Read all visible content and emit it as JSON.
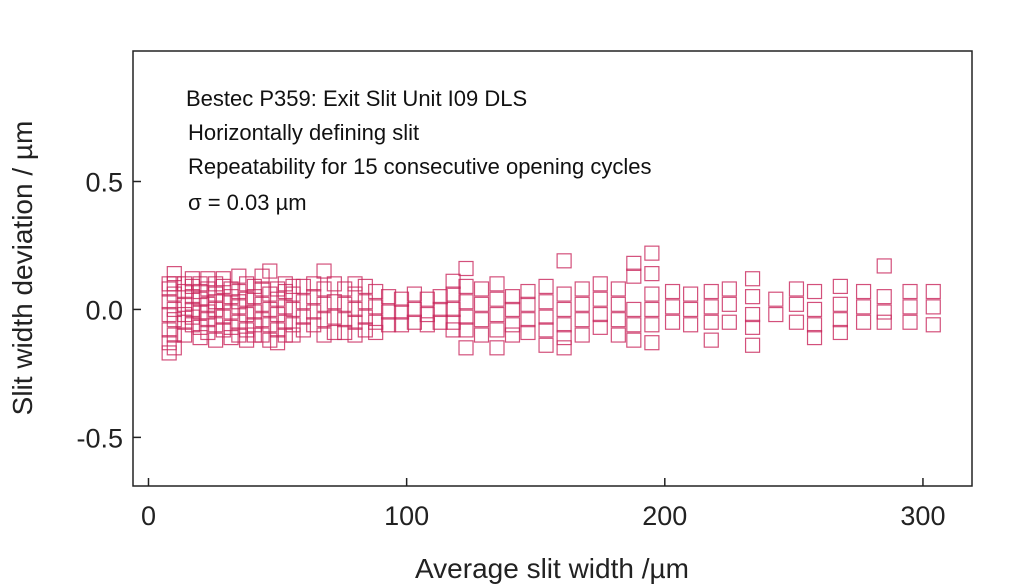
{
  "chart_data": {
    "type": "scatter",
    "title": "",
    "annotations": [
      "Bestec P359: Exit Slit Unit I09 DLS",
      "Horizontally defining slit",
      "Repeatability for 15 consecutive opening cycles",
      "σ = 0.03 µm"
    ],
    "xlabel": "Average slit width /µm",
    "ylabel": "Slit width deviation / µm",
    "xlim": [
      -6,
      319
    ],
    "ylim": [
      -0.69,
      1.01
    ],
    "xticks": [
      0,
      100,
      200,
      300
    ],
    "xtick_labels": [
      "0",
      "100",
      "200",
      "300"
    ],
    "yticks": [
      0.5,
      0.0,
      -0.5
    ],
    "ytick_labels": [
      "0.5",
      "0.0",
      "-0.5"
    ],
    "grid": false,
    "marker": "open-square",
    "color": "#c8245a",
    "columns": [
      {
        "x": 8,
        "y": [
          0.08,
          0.03,
          -0.02,
          -0.08,
          -0.13,
          -0.17,
          0.1
        ]
      },
      {
        "x": 10,
        "y": [
          0.14,
          0.06,
          -0.04,
          -0.1,
          -0.15,
          0.0,
          0.1
        ]
      },
      {
        "x": 14,
        "y": [
          0.07,
          0.02,
          -0.05,
          -0.1,
          0.1,
          -0.02
        ]
      },
      {
        "x": 17,
        "y": [
          0.05,
          0.0,
          -0.06,
          0.09,
          -0.03,
          0.12
        ]
      },
      {
        "x": 20,
        "y": [
          0.1,
          0.04,
          -0.01,
          -0.07,
          -0.11,
          0.07
        ]
      },
      {
        "x": 23,
        "y": [
          0.08,
          0.02,
          -0.04,
          -0.09,
          0.12,
          -0.01
        ]
      },
      {
        "x": 26,
        "y": [
          0.06,
          0.0,
          -0.06,
          -0.12,
          0.1,
          0.03
        ]
      },
      {
        "x": 29,
        "y": [
          0.09,
          0.03,
          -0.03,
          -0.08,
          0.12
        ]
      },
      {
        "x": 32,
        "y": [
          0.05,
          -0.01,
          -0.07,
          -0.11,
          0.08
        ]
      },
      {
        "x": 35,
        "y": [
          0.07,
          0.01,
          -0.05,
          -0.1,
          0.13,
          0.03
        ]
      },
      {
        "x": 38,
        "y": [
          0.1,
          0.04,
          -0.02,
          -0.08,
          -0.12
        ]
      },
      {
        "x": 41,
        "y": [
          0.05,
          -0.01,
          -0.06,
          0.09,
          -0.1
        ]
      },
      {
        "x": 44,
        "y": [
          0.08,
          0.02,
          -0.04,
          -0.1,
          0.13
        ]
      },
      {
        "x": 47,
        "y": [
          0.15,
          0.06,
          0.0,
          -0.06,
          -0.12
        ]
      },
      {
        "x": 50,
        "y": [
          0.04,
          -0.02,
          -0.08,
          -0.13,
          0.08
        ]
      },
      {
        "x": 53,
        "y": [
          0.07,
          0.01,
          -0.05,
          -0.1,
          0.1
        ]
      },
      {
        "x": 56,
        "y": [
          0.06,
          0.0,
          -0.06,
          -0.1,
          0.09
        ]
      },
      {
        "x": 60,
        "y": [
          0.09,
          0.03,
          -0.03,
          -0.08
        ]
      },
      {
        "x": 64,
        "y": [
          0.05,
          -0.01,
          -0.06,
          0.1
        ]
      },
      {
        "x": 68,
        "y": [
          0.15,
          0.08,
          0.02,
          -0.04,
          -0.1
        ]
      },
      {
        "x": 72,
        "y": [
          0.1,
          0.03,
          -0.03,
          -0.09
        ]
      },
      {
        "x": 76,
        "y": [
          0.08,
          0.02,
          -0.04,
          -0.09
        ]
      },
      {
        "x": 80,
        "y": [
          0.06,
          0.0,
          -0.05,
          -0.1,
          0.1
        ]
      },
      {
        "x": 84,
        "y": [
          0.09,
          0.03,
          -0.03,
          -0.08
        ]
      },
      {
        "x": 88,
        "y": [
          0.07,
          0.01,
          -0.05,
          -0.09
        ]
      },
      {
        "x": 93,
        "y": [
          0.05,
          -0.01,
          -0.06
        ]
      },
      {
        "x": 98,
        "y": [
          0.04,
          -0.01,
          -0.06
        ]
      },
      {
        "x": 103,
        "y": [
          0.06,
          0.0,
          -0.05
        ]
      },
      {
        "x": 108,
        "y": [
          0.04,
          -0.02,
          -0.06
        ]
      },
      {
        "x": 113,
        "y": [
          0.05,
          0.0,
          -0.05
        ]
      },
      {
        "x": 118,
        "y": [
          0.11,
          0.06,
          0.0,
          -0.05,
          -0.08
        ]
      },
      {
        "x": 123,
        "y": [
          0.16,
          0.09,
          0.03,
          -0.03,
          -0.08,
          -0.15
        ]
      },
      {
        "x": 129,
        "y": [
          0.08,
          0.02,
          -0.04,
          -0.1
        ]
      },
      {
        "x": 135,
        "y": [
          0.1,
          0.04,
          -0.02,
          -0.08,
          -0.15
        ]
      },
      {
        "x": 141,
        "y": [
          0.05,
          0.0,
          -0.06,
          -0.1
        ]
      },
      {
        "x": 147,
        "y": [
          0.07,
          0.02,
          -0.04,
          -0.09
        ]
      },
      {
        "x": 154,
        "y": [
          0.09,
          0.03,
          -0.03,
          -0.08,
          -0.14
        ]
      },
      {
        "x": 161,
        "y": [
          0.19,
          0.06,
          0.0,
          -0.06,
          -0.11,
          -0.15
        ]
      },
      {
        "x": 168,
        "y": [
          0.08,
          0.02,
          -0.04,
          -0.1
        ]
      },
      {
        "x": 175,
        "y": [
          0.1,
          0.04,
          -0.02,
          -0.07
        ]
      },
      {
        "x": 182,
        "y": [
          0.08,
          0.02,
          -0.04,
          -0.1
        ]
      },
      {
        "x": 188,
        "y": [
          0.18,
          0.13,
          0.0,
          -0.06,
          -0.12
        ]
      },
      {
        "x": 195,
        "y": [
          0.22,
          0.14,
          0.06,
          0.0,
          -0.06,
          -0.13
        ]
      },
      {
        "x": 203,
        "y": [
          0.07,
          0.01,
          -0.05
        ]
      },
      {
        "x": 210,
        "y": [
          0.06,
          0.0,
          -0.06
        ]
      },
      {
        "x": 218,
        "y": [
          0.07,
          0.01,
          -0.05,
          -0.12
        ]
      },
      {
        "x": 225,
        "y": [
          0.08,
          0.02,
          -0.05
        ]
      },
      {
        "x": 234,
        "y": [
          0.12,
          0.05,
          -0.02,
          -0.07,
          -0.14
        ]
      },
      {
        "x": 243,
        "y": [
          0.04,
          -0.02
        ]
      },
      {
        "x": 251,
        "y": [
          0.08,
          0.02,
          -0.05
        ]
      },
      {
        "x": 258,
        "y": [
          0.07,
          0.0,
          -0.06,
          -0.11
        ]
      },
      {
        "x": 268,
        "y": [
          0.09,
          0.02,
          -0.04,
          -0.09
        ]
      },
      {
        "x": 277,
        "y": [
          0.07,
          0.01,
          -0.05
        ]
      },
      {
        "x": 285,
        "y": [
          0.17,
          0.05,
          -0.01,
          -0.05
        ]
      },
      {
        "x": 295,
        "y": [
          0.07,
          0.01,
          -0.05
        ]
      },
      {
        "x": 304,
        "y": [
          0.07,
          0.01,
          -0.06
        ]
      }
    ]
  }
}
